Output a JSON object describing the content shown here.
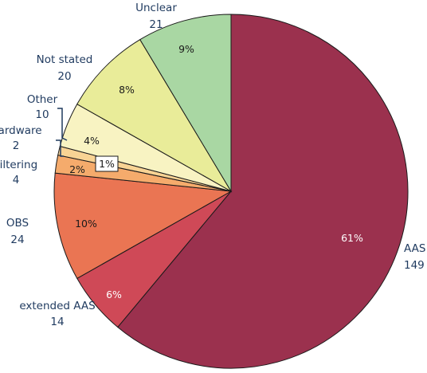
{
  "chart_data": {
    "type": "pie",
    "slices": [
      {
        "name": "AAS",
        "value": 149,
        "pct_label": "61%",
        "color": "#9b314e",
        "pct_color": "#ffffff"
      },
      {
        "name": "extended AAS",
        "value": 14,
        "pct_label": "6%",
        "color": "#cf4957",
        "pct_color": "#ffffff"
      },
      {
        "name": "OBS",
        "value": 24,
        "pct_label": "10%",
        "color": "#ea7553",
        "pct_color": "#1a1a1a"
      },
      {
        "name": "Filtering",
        "value": 4,
        "pct_label": "2%",
        "color": "#f5ab6c",
        "pct_color": "#1a1a1a"
      },
      {
        "name": "Hardware",
        "value": 2,
        "pct_label": "1%",
        "color": "#f8d394",
        "pct_color": "#1a1a1a"
      },
      {
        "name": "Other",
        "value": 10,
        "pct_label": "4%",
        "color": "#f8f3c2",
        "pct_color": "#1a1a1a"
      },
      {
        "name": "Not stated",
        "value": 20,
        "pct_label": "8%",
        "color": "#e9ec99",
        "pct_color": "#1a1a1a"
      },
      {
        "name": "Unclear",
        "value": 21,
        "pct_label": "9%",
        "color": "#a9d7a3",
        "pct_color": "#1a1a1a"
      }
    ]
  }
}
